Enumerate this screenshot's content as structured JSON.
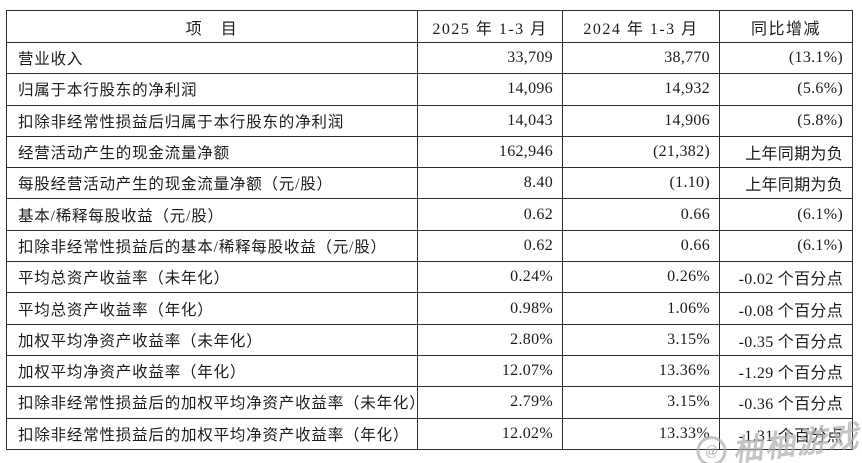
{
  "colors": {
    "background": "#ffffff",
    "border": "#2e2e2e",
    "text": "#1c1c1c",
    "watermark": "#afafaf"
  },
  "table": {
    "columns": [
      {
        "label": "项　目"
      },
      {
        "label": "2025 年 1-3 月"
      },
      {
        "label": "2024 年 1-3 月"
      },
      {
        "label": "同比增减"
      }
    ],
    "rows": [
      {
        "item": "营业收入",
        "v2025": "33,709",
        "v2024": "38,770",
        "yoy": "(13.1%)"
      },
      {
        "item": "归属于本行股东的净利润",
        "v2025": "14,096",
        "v2024": "14,932",
        "yoy": "(5.6%)"
      },
      {
        "item": "扣除非经常性损益后归属于本行股东的净利润",
        "v2025": "14,043",
        "v2024": "14,906",
        "yoy": "(5.8%)"
      },
      {
        "item": "经营活动产生的现金流量净额",
        "v2025": "162,946",
        "v2024": "(21,382)",
        "yoy": "上年同期为负"
      },
      {
        "item": "每股经营活动产生的现金流量净额（元/股）",
        "v2025": "8.40",
        "v2024": "(1.10)",
        "yoy": "上年同期为负"
      },
      {
        "item": "基本/稀释每股收益（元/股）",
        "v2025": "0.62",
        "v2024": "0.66",
        "yoy": "(6.1%)"
      },
      {
        "item": "扣除非经常性损益后的基本/稀释每股收益（元/股）",
        "v2025": "0.62",
        "v2024": "0.66",
        "yoy": "(6.1%)"
      },
      {
        "item": "平均总资产收益率（未年化）",
        "v2025": "0.24%",
        "v2024": "0.26%",
        "yoy": "-0.02 个百分点"
      },
      {
        "item": "平均总资产收益率（年化）",
        "v2025": "0.98%",
        "v2024": "1.06%",
        "yoy": "-0.08 个百分点"
      },
      {
        "item": "加权平均净资产收益率（未年化）",
        "v2025": "2.80%",
        "v2024": "3.15%",
        "yoy": "-0.35 个百分点"
      },
      {
        "item": "加权平均净资产收益率（年化）",
        "v2025": "12.07%",
        "v2024": "13.36%",
        "yoy": "-1.29 个百分点"
      },
      {
        "item": "扣除非经常性损益后的加权平均净资产收益率（未年化）",
        "v2025": "2.79%",
        "v2024": "3.15%",
        "yoy": "-0.36 个百分点"
      },
      {
        "item": "扣除非经常性损益后的加权平均净资产收益率（年化）",
        "v2025": "12.02%",
        "v2024": "13.33%",
        "yoy": "-1.31 个百分点"
      }
    ]
  },
  "watermark": {
    "logo": "@",
    "text": "柚柚游戏"
  }
}
